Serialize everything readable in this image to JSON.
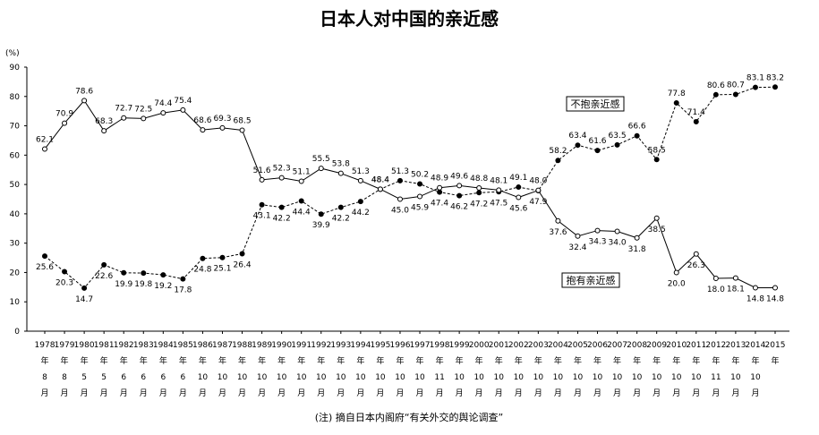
{
  "chart_data": {
    "type": "line",
    "title": "日本人对中国的亲近感",
    "y_unit": "(%)",
    "note": "(注) 摘自日本内阁府“有关外交的舆论调查”",
    "categories": [
      "1978年8月",
      "1979年8月",
      "1980年5月",
      "1981年5月",
      "1982年6月",
      "1983年6月",
      "1984年6月",
      "1985年6月",
      "1986年10月",
      "1987年10月",
      "1988年10月",
      "1989年10月",
      "1990年10月",
      "1991年10月",
      "1992年10月",
      "1993年10月",
      "1994年10月",
      "1995年10月",
      "1996年10月",
      "1997年10月",
      "1998年11月",
      "1999年10月",
      "2000年10月",
      "2001年10月",
      "2002年10月",
      "2003年10月",
      "2004年10月",
      "2005年10月",
      "2006年10月",
      "2007年10月",
      "2008年10月",
      "2009年10月",
      "2010年10月",
      "2011年10月",
      "2012年11月",
      "2013年10月",
      "2014年10月",
      "2015年"
    ],
    "series": [
      {
        "name": "不抱亲近感",
        "color": "#000000",
        "dashed": true,
        "marker": "filled",
        "values": [
          25.6,
          20.3,
          14.7,
          22.6,
          19.9,
          19.8,
          19.2,
          17.8,
          24.8,
          25.1,
          26.4,
          43.1,
          42.2,
          44.4,
          39.9,
          42.2,
          44.2,
          48.4,
          51.3,
          50.2,
          47.4,
          46.2,
          47.2,
          47.5,
          49.1,
          47.9,
          58.2,
          63.4,
          61.6,
          63.5,
          66.6,
          58.5,
          77.8,
          71.4,
          80.6,
          80.7,
          83.1,
          83.2
        ],
        "value_labels": [
          "25.6",
          "20.3",
          "14.7",
          "22.6",
          "19.9",
          "19.8",
          "19.2",
          "17.8",
          "24.8",
          "25.1",
          "26.4",
          "43.1",
          "42.2",
          "44.4",
          "39.9",
          "42.2",
          "44.2",
          "48.4",
          "51.3",
          "50.2",
          "47.4",
          "46.2",
          "47.2",
          "47.5",
          "49.1",
          "47.9",
          "58.2",
          "63.4",
          "61.6",
          "63.5",
          "66.6",
          "58.5",
          "77.8",
          "71.4",
          "80.6",
          "80.7",
          "83.1",
          "83.2"
        ]
      },
      {
        "name": "抱有亲近感",
        "color": "#000000",
        "dashed": false,
        "marker": "open",
        "values": [
          62.1,
          70.9,
          78.6,
          68.3,
          72.7,
          72.5,
          74.4,
          75.4,
          68.6,
          69.3,
          68.5,
          51.6,
          52.3,
          51.1,
          55.5,
          53.8,
          51.3,
          48.4,
          45.0,
          45.9,
          48.9,
          49.6,
          48.8,
          48.1,
          45.6,
          48.0,
          37.6,
          32.4,
          34.3,
          34.0,
          31.8,
          38.5,
          20.0,
          26.3,
          18.0,
          18.1,
          14.8,
          14.8
        ],
        "value_labels": [
          "62.1",
          "70.9",
          "78.6",
          "68.3",
          "72.7",
          "72.5",
          "74.4",
          "75.4",
          "68.6",
          "69.3",
          "68.5",
          "51.6",
          "52.3",
          "51.1",
          "55.5",
          "53.8",
          "51.3",
          "48.4",
          "45.0",
          "45.9",
          "48.9",
          "49.6",
          "48.8",
          "48.1",
          "45.6",
          "48.0",
          "37.6",
          "32.4",
          "34.3",
          "34.0",
          "31.8",
          "38.5",
          "20.0",
          "26.3",
          "18.0",
          "18.1",
          "14.8",
          "14.8"
        ]
      }
    ],
    "ylim": [
      0,
      90
    ],
    "yticks": [
      0,
      10,
      20,
      30,
      40,
      50,
      60,
      70,
      80,
      90
    ]
  }
}
